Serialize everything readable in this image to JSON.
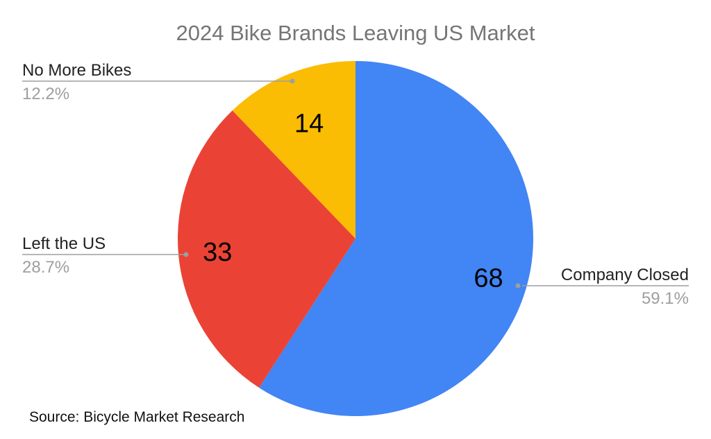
{
  "chart_data": {
    "type": "pie",
    "title": "2024 Bike Brands Leaving US Market",
    "slices": [
      {
        "label": "Company Closed",
        "value": 68,
        "value_label": "68",
        "percent_label": "59.1%",
        "color": "#4285F4"
      },
      {
        "label": "Left the US",
        "value": 33,
        "value_label": "33",
        "percent_label": "28.7%",
        "color": "#EA4335"
      },
      {
        "label": "No More Bikes",
        "value": 14,
        "value_label": "14",
        "percent_label": "12.2%",
        "color": "#FBBC04"
      }
    ],
    "start_angle": "12 o'clock",
    "direction": "clockwise",
    "legend": "none"
  },
  "source": "Source: Bicycle Market Research"
}
